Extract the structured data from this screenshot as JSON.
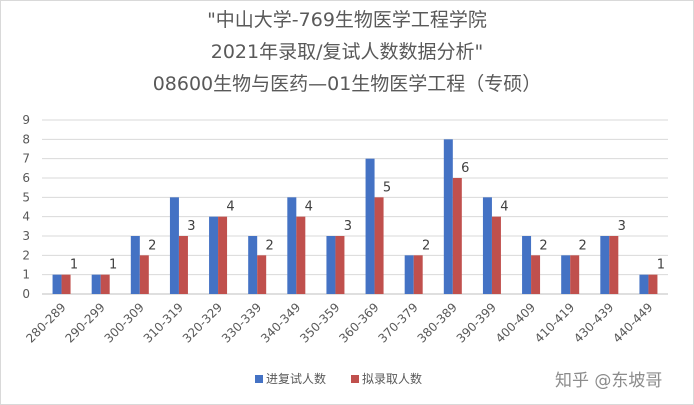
{
  "title_lines": [
    "\"中山大学-769生物医学工程学院",
    "2021年录取/复试人数数据分析\"",
    "08600生物与医药—01生物医学工程（专硕）"
  ],
  "watermark": "知乎 @东坡哥",
  "colors": {
    "series1": "#4472c4",
    "series2": "#c0504d",
    "text": "#595959",
    "grid": "#d9d9d9",
    "axis": "#bfbfbf"
  },
  "chart_data": {
    "type": "bar",
    "categories": [
      "280-289",
      "290-299",
      "300-309",
      "310-319",
      "320-329",
      "330-339",
      "340-349",
      "350-359",
      "360-369",
      "370-379",
      "380-389",
      "390-399",
      "400-409",
      "410-419",
      "430-439",
      "440-449"
    ],
    "series": [
      {
        "name": "进复试人数",
        "values": [
          1,
          1,
          3,
          5,
          4,
          3,
          5,
          3,
          7,
          2,
          8,
          5,
          3,
          2,
          3,
          1
        ]
      },
      {
        "name": "拟录取人数",
        "values": [
          1,
          1,
          2,
          3,
          4,
          2,
          4,
          3,
          5,
          2,
          6,
          4,
          2,
          2,
          3,
          1
        ]
      }
    ],
    "data_labels_series": "拟录取人数",
    "ylim": [
      0,
      9
    ],
    "yticks": [
      0,
      1,
      2,
      3,
      4,
      5,
      6,
      7,
      8,
      9
    ],
    "grid": true,
    "legend": "bottom-center"
  }
}
